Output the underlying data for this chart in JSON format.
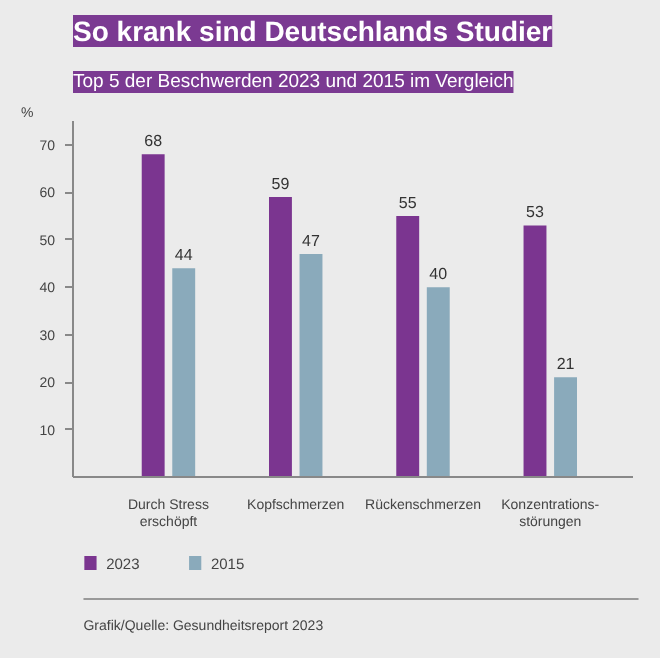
{
  "chart_data": {
    "type": "bar",
    "title": "So krank sind Deutschlands Studier",
    "subtitle": "Top 5 der Beschwerden 2023 und 2015 im Vergleich",
    "ylabel": "%",
    "categories": [
      "Durch Stress\nerschöpft",
      "Kopfschmerzen",
      "Rückenschmerzen",
      "Konzentrations-\nstörungen"
    ],
    "series": [
      {
        "name": "2023",
        "color": "#7b3590",
        "values": [
          68,
          59,
          55,
          53
        ]
      },
      {
        "name": "2015",
        "color": "#8aaabb",
        "values": [
          44,
          47,
          40,
          21
        ]
      }
    ],
    "ylim": [
      0,
      75
    ],
    "yticks": [
      10,
      20,
      30,
      40,
      50,
      60,
      70
    ],
    "grid": false,
    "legend": "bottom left",
    "data_labels": true,
    "annotations": [
      "Grafik/Quelle: Gesundheitsreport 2023"
    ]
  }
}
